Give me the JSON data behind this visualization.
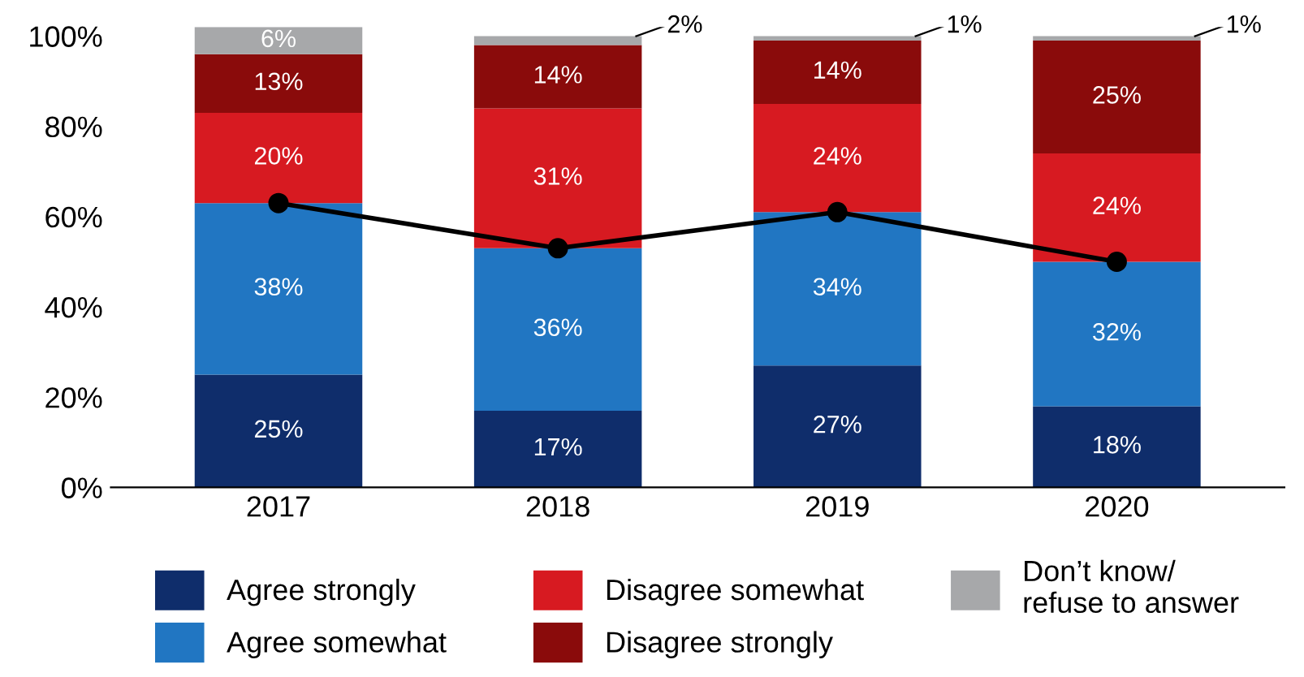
{
  "chart_data": {
    "type": "bar",
    "stacked": true,
    "categories": [
      "2017",
      "2018",
      "2019",
      "2020"
    ],
    "series": [
      {
        "name": "Agree strongly",
        "color": "#0f2d6b",
        "values": [
          25,
          17,
          27,
          18
        ],
        "value_labels": [
          "25%",
          "17%",
          "27%",
          "18%"
        ]
      },
      {
        "name": "Agree somewhat",
        "color": "#2176c2",
        "values": [
          38,
          36,
          34,
          32
        ],
        "value_labels": [
          "38%",
          "36%",
          "34%",
          "32%"
        ]
      },
      {
        "name": "Disagree somewhat",
        "color": "#d71a21",
        "values": [
          20,
          31,
          24,
          24
        ],
        "value_labels": [
          "20%",
          "31%",
          "24%",
          "24%"
        ]
      },
      {
        "name": "Disagree strongly",
        "color": "#8a0b0b",
        "values": [
          13,
          14,
          14,
          25
        ],
        "value_labels": [
          "13%",
          "14%",
          "14%",
          "25%"
        ]
      },
      {
        "name": "Don’t know/\nrefuse to answer",
        "color": "#a7a8aa",
        "values": [
          6,
          2,
          1,
          1
        ],
        "value_labels": [
          "6%",
          "2%",
          "1%",
          "1%"
        ]
      },
      {
        "type": "line",
        "color": "#000000",
        "values": [
          63,
          53,
          61,
          50
        ],
        "marker": "circle"
      }
    ],
    "ylim": [
      0,
      102
    ],
    "yticks": [
      {
        "value": 0,
        "label": "0%"
      },
      {
        "value": 20,
        "label": "20%"
      },
      {
        "value": 40,
        "label": "40%"
      },
      {
        "value": 60,
        "label": "60%"
      },
      {
        "value": 80,
        "label": "80%"
      },
      {
        "value": 100,
        "label": "100%"
      }
    ],
    "grid": false,
    "legend": "bottom"
  }
}
